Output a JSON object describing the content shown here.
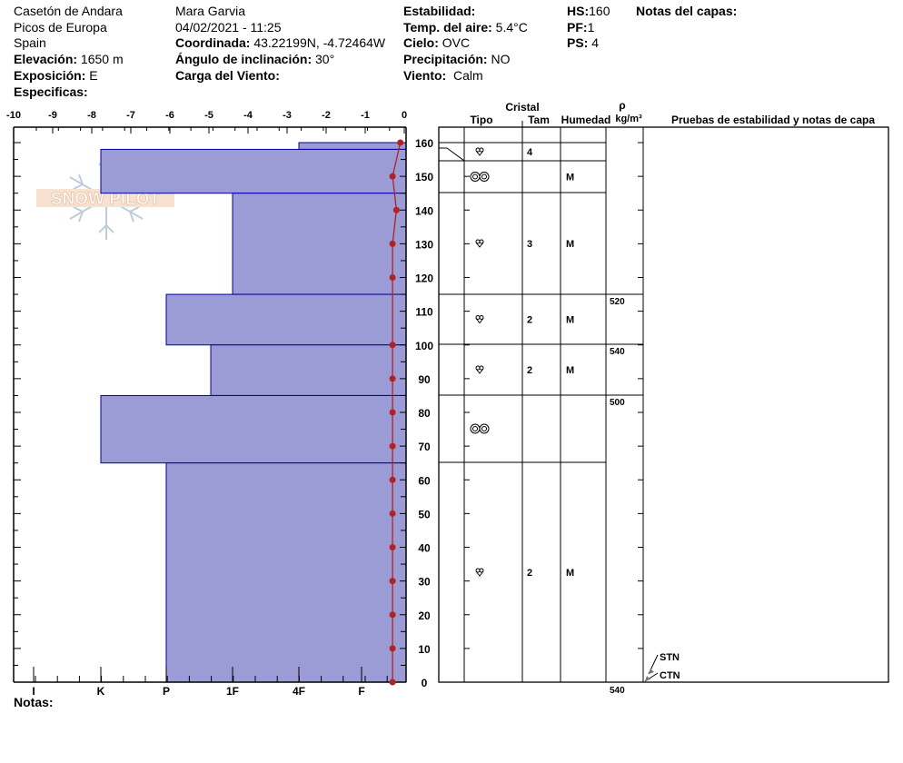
{
  "header": {
    "col1": {
      "location": "Casetón de Andara",
      "range": "Picos de Europa",
      "country": "Spain",
      "elevation_label": "Elevación:",
      "elevation": "1650 m",
      "aspect_label": "Exposición:",
      "aspect": "E",
      "specifics_label": "Especificas:"
    },
    "col2": {
      "observer": "Mara Garvia",
      "datetime": "04/02/2021 - 11:25",
      "coord_label": "Coordinada:",
      "coord": "43.22199N, -4.72464W",
      "slope_label": "Ángulo de inclinación:",
      "slope": "30°",
      "wind_load_label": "Carga del Viento:"
    },
    "col3": {
      "stability_label": "Estabilidad:",
      "air_temp_label": "Temp. del aire:",
      "air_temp": "5.4°C",
      "sky_label": "Cielo:",
      "sky": "OVC",
      "precip_label": "Precipitación:",
      "precip": "NO",
      "wind_label": "Viento:",
      "wind": "Calm"
    },
    "col4": {
      "hs_label": "HS:",
      "hs": "160",
      "pf_label": "PF:",
      "pf": "1",
      "ps_label": "PS:",
      "ps": "4"
    },
    "col5": {
      "layer_notes_label": "Notas del capas:"
    }
  },
  "notes_label": "Notas:",
  "logo_text": "SNOW PILOT",
  "table_headers": {
    "crystal": "Cristal",
    "type": "Tipo",
    "size": "Tam",
    "moisture": "Humedad",
    "rho": "ρ",
    "density_unit": "kg/m³",
    "tests": "Pruebas de estabilidad y notas de capa"
  },
  "chart_data": {
    "type": "snow-profile",
    "temp_axis": {
      "ticks": [
        "-10",
        "-9",
        "-8",
        "-7",
        "-6",
        "-5",
        "-4",
        "-3",
        "-2",
        "-1",
        "0"
      ],
      "range": [
        -10,
        0
      ]
    },
    "depth_axis": {
      "range": [
        0,
        160
      ],
      "ticks": [
        "0",
        "10",
        "20",
        "30",
        "40",
        "50",
        "60",
        "70",
        "80",
        "90",
        "100",
        "110",
        "120",
        "130",
        "140",
        "150",
        "160"
      ]
    },
    "hardness_axis": {
      "ticks": [
        "I",
        "K",
        "P",
        "1F",
        "4F",
        "F"
      ]
    },
    "hardness_layers": [
      {
        "top": 160,
        "bottom": 158,
        "hardness": "4F"
      },
      {
        "top": 158,
        "bottom": 145,
        "hardness": "K"
      },
      {
        "top": 145,
        "bottom": 115,
        "hardness": "1F"
      },
      {
        "top": 115,
        "bottom": 100,
        "hardness": "P"
      },
      {
        "top": 100,
        "bottom": 85,
        "hardness": "1F-"
      },
      {
        "top": 85,
        "bottom": 65,
        "hardness": "K"
      },
      {
        "top": 65,
        "bottom": 0,
        "hardness": "P"
      }
    ],
    "temperature_profile": [
      {
        "depth": 160,
        "temp": -0.1
      },
      {
        "depth": 150,
        "temp": -0.3
      },
      {
        "depth": 140,
        "temp": -0.2
      },
      {
        "depth": 130,
        "temp": -0.3
      },
      {
        "depth": 120,
        "temp": -0.3
      },
      {
        "depth": 100,
        "temp": -0.3
      },
      {
        "depth": 90,
        "temp": -0.3
      },
      {
        "depth": 80,
        "temp": -0.3
      },
      {
        "depth": 70,
        "temp": -0.3
      },
      {
        "depth": 60,
        "temp": -0.3
      },
      {
        "depth": 50,
        "temp": -0.3
      },
      {
        "depth": 40,
        "temp": -0.3
      },
      {
        "depth": 30,
        "temp": -0.3
      },
      {
        "depth": 20,
        "temp": -0.3
      },
      {
        "depth": 10,
        "temp": -0.3
      },
      {
        "depth": 0,
        "temp": -0.3
      }
    ],
    "layers_table": [
      {
        "grain": "rounding-faceted",
        "size": "4",
        "moisture": "",
        "density": ""
      },
      {
        "grain": "melt-forms",
        "size": "",
        "moisture": "M",
        "density": ""
      },
      {
        "grain": "rounding-faceted",
        "size": "3",
        "moisture": "M",
        "density": ""
      },
      {
        "grain": "rounding-faceted",
        "size": "2",
        "moisture": "M",
        "density": "520"
      },
      {
        "grain": "rounding-faceted",
        "size": "2",
        "moisture": "M",
        "density": "540"
      },
      {
        "grain": "melt-forms",
        "size": "",
        "moisture": "",
        "density": "500"
      },
      {
        "grain": "rounding-faceted",
        "size": "2",
        "moisture": "M",
        "density": ""
      }
    ],
    "bottom_density": "540",
    "stability_tests": [
      {
        "label": "STN"
      },
      {
        "label": "CTN"
      }
    ],
    "colors": {
      "hardness_fill": "#9b9bd5",
      "hardness_edge": "#0000a0",
      "temperature": "#b22222"
    }
  }
}
